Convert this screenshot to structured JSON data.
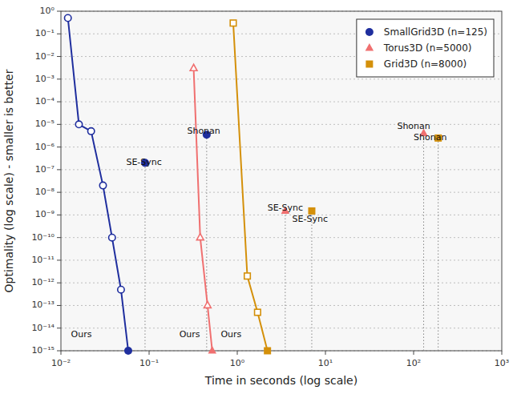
{
  "chart_data": {
    "type": "line",
    "xlabel": "Time in seconds (log scale)",
    "ylabel": "Optimality (log scale) - smaller is better",
    "log": true,
    "xlim": [
      0.01,
      1000
    ],
    "ylim": [
      1e-15,
      1
    ],
    "xticks": [
      {
        "value": 0.01,
        "label": "10⁻²"
      },
      {
        "value": 0.1,
        "label": "10⁻¹"
      },
      {
        "value": 1,
        "label": "10⁰"
      },
      {
        "value": 10,
        "label": "10¹"
      },
      {
        "value": 100,
        "label": "10²"
      },
      {
        "value": 1000,
        "label": "10³"
      }
    ],
    "yticks": [
      {
        "value": 1e-15,
        "label": "10⁻¹⁵"
      },
      {
        "value": 1e-14,
        "label": "10⁻¹⁴"
      },
      {
        "value": 1e-13,
        "label": "10⁻¹³"
      },
      {
        "value": 1e-12,
        "label": "10⁻¹²"
      },
      {
        "value": 1e-11,
        "label": "10⁻¹¹"
      },
      {
        "value": 1e-10,
        "label": "10⁻¹⁰"
      },
      {
        "value": 1e-09,
        "label": "10⁻⁹"
      },
      {
        "value": 1e-08,
        "label": "10⁻⁸"
      },
      {
        "value": 1e-07,
        "label": "10⁻⁷"
      },
      {
        "value": 1e-06,
        "label": "10⁻⁶"
      },
      {
        "value": 1e-05,
        "label": "10⁻⁵"
      },
      {
        "value": 0.0001,
        "label": "10⁻⁴"
      },
      {
        "value": 0.001,
        "label": "10⁻³"
      },
      {
        "value": 0.01,
        "label": "10⁻²"
      },
      {
        "value": 0.1,
        "label": "10⁻¹"
      },
      {
        "value": 1,
        "label": "10⁰"
      }
    ],
    "grid": "y",
    "legend": "upper right",
    "series": [
      {
        "name": "SmallGrid3D (n=125)",
        "color": "#1f2e9e",
        "marker": "circle",
        "x": [
          0.012,
          0.016,
          0.022,
          0.03,
          0.038,
          0.048,
          0.058
        ],
        "values": [
          0.5,
          1e-05,
          5e-06,
          2e-08,
          1e-10,
          5e-13,
          1e-15
        ],
        "se_sync": {
          "x": 0.09,
          "y": 2e-07
        },
        "shonan": {
          "x": 0.45,
          "y": 3.5e-06
        }
      },
      {
        "name": "Torus3D (n=5000)",
        "color": "#f07070",
        "marker": "triangle",
        "x": [
          0.32,
          0.38,
          0.46,
          0.52
        ],
        "values": [
          0.003,
          1e-10,
          1e-13,
          1e-15
        ],
        "se_sync": {
          "x": 3.5,
          "y": 1.5e-09
        },
        "shonan": {
          "x": 130,
          "y": 4e-06
        }
      },
      {
        "name": "Grid3D (n=8000)",
        "color": "#d4900a",
        "marker": "square",
        "x": [
          0.9,
          1.3,
          1.7,
          2.2
        ],
        "values": [
          0.3,
          2e-12,
          5e-14,
          1e-15
        ],
        "se_sync": {
          "x": 7.0,
          "y": 1.5e-09
        },
        "shonan": {
          "x": 190,
          "y": 2.5e-06
        }
      }
    ],
    "annotations": [
      {
        "text": "Ours",
        "x": 0.013,
        "y": 5e-15
      },
      {
        "text": "SE-Sync",
        "x": 0.055,
        "y": 2e-07
      },
      {
        "text": "Shonan",
        "x": 0.27,
        "y": 5e-06
      },
      {
        "text": "Ours",
        "x": 0.22,
        "y": 5e-15
      },
      {
        "text": "SE-Sync",
        "x": 2.2,
        "y": 2e-09
      },
      {
        "text": "Shonan",
        "x": 65,
        "y": 8e-06
      },
      {
        "text": "Ours",
        "x": 0.65,
        "y": 5e-15
      },
      {
        "text": "SE-Sync",
        "x": 4.2,
        "y": 2e-09
      },
      {
        "text": "Shonan",
        "x": 100,
        "y": 3.5e-06
      }
    ]
  }
}
